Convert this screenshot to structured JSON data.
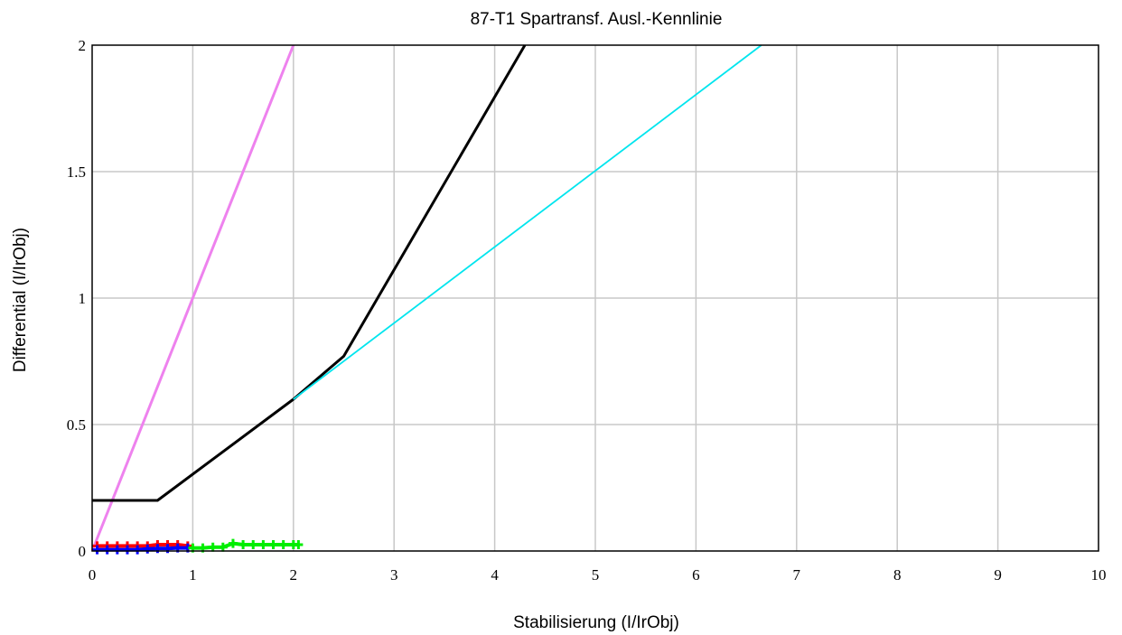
{
  "chart_data": {
    "type": "line",
    "title": "87-T1 Spartransf. Ausl.-Kennlinie",
    "xlabel": "Stabilisierung (I/IrObj)",
    "ylabel": "Differential (I/IrObj)",
    "xlim": [
      0,
      10
    ],
    "ylim": [
      0,
      2
    ],
    "xticks": [
      "0",
      "1",
      "2",
      "3",
      "4",
      "5",
      "6",
      "7",
      "8",
      "9",
      "10"
    ],
    "yticks": [
      "0",
      "0.5",
      "1",
      "1.5",
      "2"
    ],
    "grid": true,
    "legend": "none",
    "series": [
      {
        "color": "#ee82ee",
        "kind": "line",
        "x": [
          0,
          2
        ],
        "y": [
          0,
          2
        ]
      },
      {
        "color": "#000000",
        "kind": "line",
        "x": [
          0,
          0.65,
          2,
          2.5,
          4.3
        ],
        "y": [
          0.2,
          0.2,
          0.6,
          0.77,
          2.0
        ]
      },
      {
        "color": "#00e5ee",
        "kind": "line",
        "x": [
          2,
          6.65
        ],
        "y": [
          0.6,
          2.0
        ]
      },
      {
        "color": "#ff0000",
        "kind": "markers",
        "x": [
          0.05,
          0.15,
          0.25,
          0.35,
          0.45,
          0.55,
          0.65,
          0.75,
          0.85,
          0.95
        ],
        "y": [
          0.02,
          0.02,
          0.02,
          0.02,
          0.02,
          0.02,
          0.025,
          0.025,
          0.025,
          0.02
        ]
      },
      {
        "color": "#0000ff",
        "kind": "markers",
        "x": [
          0.05,
          0.15,
          0.25,
          0.35,
          0.45,
          0.55,
          0.65,
          0.75,
          0.85,
          0.95
        ],
        "y": [
          0.005,
          0.005,
          0.005,
          0.005,
          0.005,
          0.008,
          0.01,
          0.01,
          0.012,
          0.012
        ]
      },
      {
        "color": "#00ee00",
        "kind": "markers",
        "x": [
          1.0,
          1.1,
          1.2,
          1.3,
          1.4,
          1.5,
          1.6,
          1.7,
          1.8,
          1.9,
          2.0,
          2.05
        ],
        "y": [
          0.012,
          0.012,
          0.015,
          0.015,
          0.03,
          0.025,
          0.025,
          0.025,
          0.025,
          0.025,
          0.025,
          0.025
        ]
      }
    ]
  }
}
